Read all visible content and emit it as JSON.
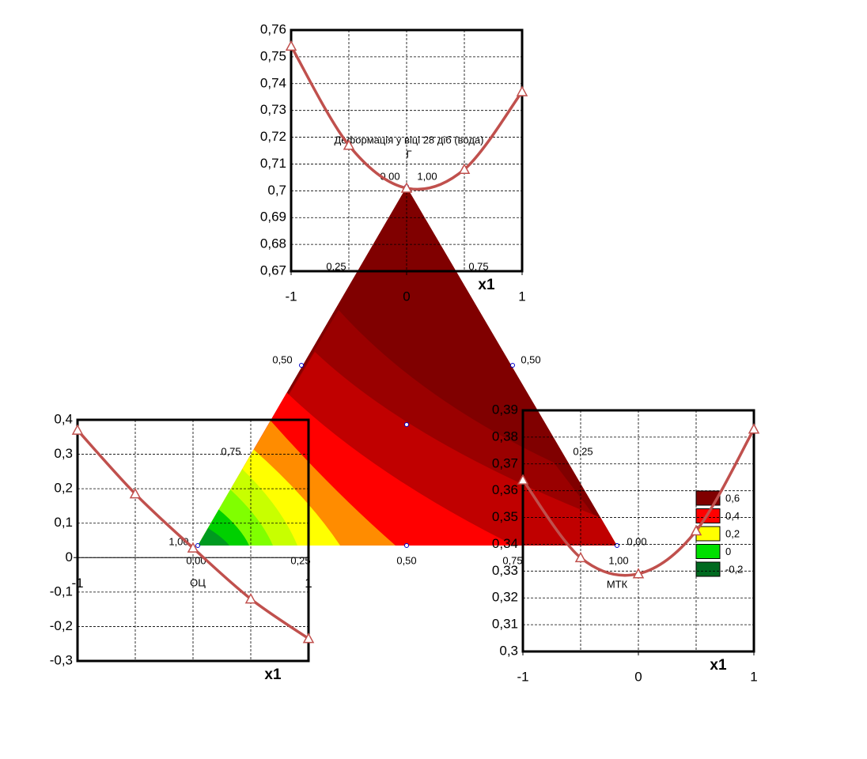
{
  "chart_data": [
    {
      "type": "line",
      "xlabel": "x1",
      "x": [
        -1,
        -0.5,
        0,
        0.5,
        1
      ],
      "xlim": [
        -1,
        1
      ],
      "xticks": [
        -1,
        0,
        1
      ],
      "ylim": [
        0.67,
        0.76
      ],
      "yticks": [
        {
          "value": 0.67,
          "label": "0,67"
        },
        {
          "value": 0.68,
          "label": "0,68"
        },
        {
          "value": 0.69,
          "label": "0,69"
        },
        {
          "value": 0.7,
          "label": "0,7"
        },
        {
          "value": 0.71,
          "label": "0,71"
        },
        {
          "value": 0.72,
          "label": "0,72"
        },
        {
          "value": 0.73,
          "label": "0,73"
        },
        {
          "value": 0.74,
          "label": "0,74"
        },
        {
          "value": 0.75,
          "label": "0,75"
        },
        {
          "value": 0.76,
          "label": "0,76"
        }
      ],
      "grid": true,
      "series": [
        {
          "color": "#c0504d",
          "values": [
            0.754,
            0.717,
            0.701,
            0.708,
            0.737
          ]
        }
      ]
    },
    {
      "type": "line",
      "xlabel": "x1",
      "x": [
        -1,
        -0.5,
        0,
        0.5,
        1
      ],
      "xlim": [
        -1,
        1
      ],
      "xticks": [
        -1,
        1
      ],
      "x_axis_at": 0,
      "ylim": [
        -0.3,
        0.4
      ],
      "yticks": [
        {
          "value": -0.3,
          "label": "-0,3"
        },
        {
          "value": -0.2,
          "label": "-0,2"
        },
        {
          "value": -0.1,
          "label": "-0,1"
        },
        0,
        {
          "value": 0.1,
          "label": "0,1"
        },
        {
          "value": 0.2,
          "label": "0,2"
        },
        {
          "value": 0.3,
          "label": "0,3"
        },
        {
          "value": 0.4,
          "label": "0,4"
        }
      ],
      "grid": true,
      "series": [
        {
          "color": "#c0504d",
          "values": [
            0.37,
            0.185,
            0.028,
            -0.12,
            -0.235
          ]
        }
      ]
    },
    {
      "type": "line",
      "xlabel": "x1",
      "x": [
        -1,
        -0.5,
        0,
        0.5,
        1
      ],
      "xlim": [
        -1,
        1
      ],
      "xticks": [
        -1,
        0,
        1
      ],
      "ylim": [
        0.3,
        0.39
      ],
      "yticks": [
        {
          "value": 0.3,
          "label": "0,3"
        },
        {
          "value": 0.31,
          "label": "0,31"
        },
        {
          "value": 0.32,
          "label": "0,32"
        },
        {
          "value": 0.33,
          "label": "0,33"
        },
        {
          "value": 0.34,
          "label": "0,34"
        },
        {
          "value": 0.35,
          "label": "0,35"
        },
        {
          "value": 0.36,
          "label": "0,36"
        },
        {
          "value": 0.37,
          "label": "0,37"
        },
        {
          "value": 0.38,
          "label": "0,38"
        },
        {
          "value": 0.39,
          "label": "0,39"
        }
      ],
      "grid": true,
      "series": [
        {
          "color": "#c0504d",
          "values": [
            0.364,
            0.335,
            0.329,
            0.345,
            0.383
          ]
        }
      ]
    },
    {
      "type": "ternary",
      "title": "Деформація у віці 28 діб (вода)",
      "subtitle": "Г",
      "tick_labels": [
        "0,00",
        "1,00",
        "0,25",
        "0,75",
        "0,50",
        "0,50",
        "0,75",
        "0,25",
        "1,00",
        "0,00",
        "0,00",
        "0,25",
        "0,50",
        "0,75",
        "1,00"
      ],
      "vertex_labels": [
        "ОЦ",
        "МТК"
      ],
      "legend": [
        {
          "value": 0.6,
          "label": "0,6",
          "color": "#800000"
        },
        {
          "value": 0.4,
          "label": "0,4",
          "color": "#ff0000"
        },
        {
          "value": 0.2,
          "label": "0,2",
          "color": "#ffff00"
        },
        {
          "value": 0,
          "label": "0",
          "color": "#00e000"
        },
        {
          "value": -0.2,
          "label": "-0,2",
          "color": "#006a20"
        }
      ]
    }
  ]
}
